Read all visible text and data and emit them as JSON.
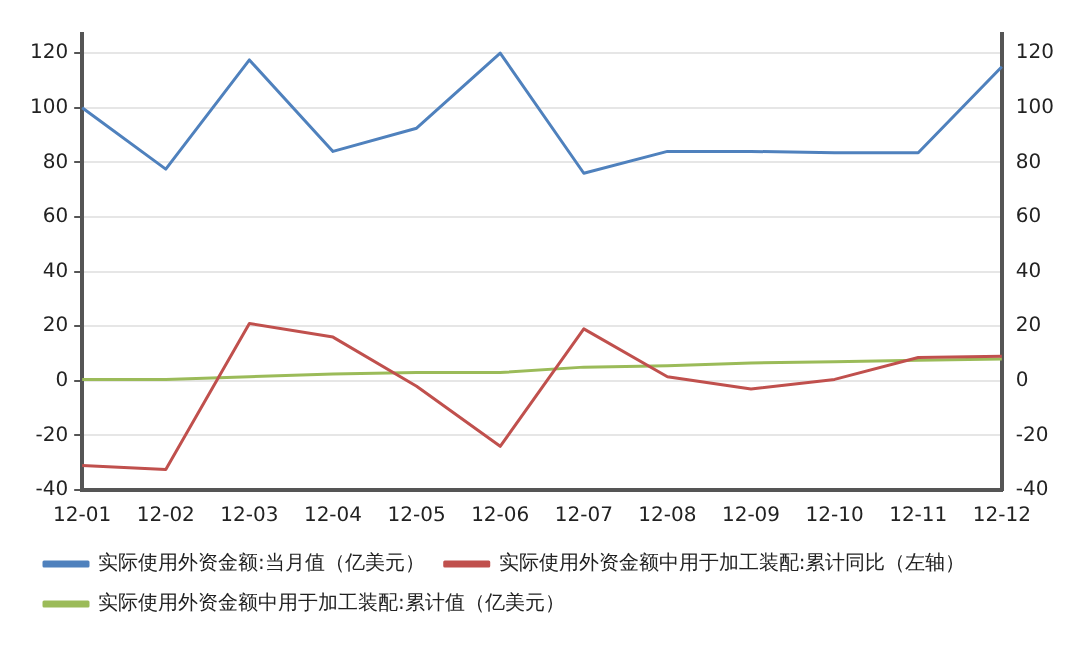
{
  "chart_data": {
    "type": "line",
    "categories": [
      "12-01",
      "12-02",
      "12-03",
      "12-04",
      "12-05",
      "12-06",
      "12-07",
      "12-08",
      "12-09",
      "12-10",
      "12-11",
      "12-12"
    ],
    "series": [
      {
        "name": "实际使用外资金额:当月值（亿美元）",
        "color": "#4f81bd",
        "values": [
          100,
          77.5,
          117.5,
          84,
          92.5,
          120,
          76,
          84,
          84,
          83.5,
          83.5,
          115
        ]
      },
      {
        "name": "实际使用外资金额中用于加工装配:累计同比（左轴）",
        "color": "#c0504d",
        "values": [
          -31,
          -32.5,
          21,
          16,
          -2,
          -24,
          19,
          1.5,
          -3,
          0.5,
          8.5,
          9
        ]
      },
      {
        "name": "实际使用外资金额中用于加工装配:累计值（亿美元）",
        "color": "#9bbb59",
        "values": [
          0.5,
          0.5,
          1.5,
          2.5,
          3,
          3,
          5,
          5.5,
          6.5,
          7,
          7.5,
          8
        ]
      }
    ],
    "ylim": [
      -40,
      127
    ],
    "yticks": [
      -40,
      -20,
      0,
      20,
      40,
      60,
      80,
      100,
      120
    ],
    "y2lim": [
      -40,
      127
    ],
    "y2ticks": [
      -40,
      -20,
      0,
      20,
      40,
      60,
      80,
      100,
      120
    ],
    "grid": "y",
    "legend": "bottom",
    "marker": "none",
    "line_style": "solid"
  }
}
